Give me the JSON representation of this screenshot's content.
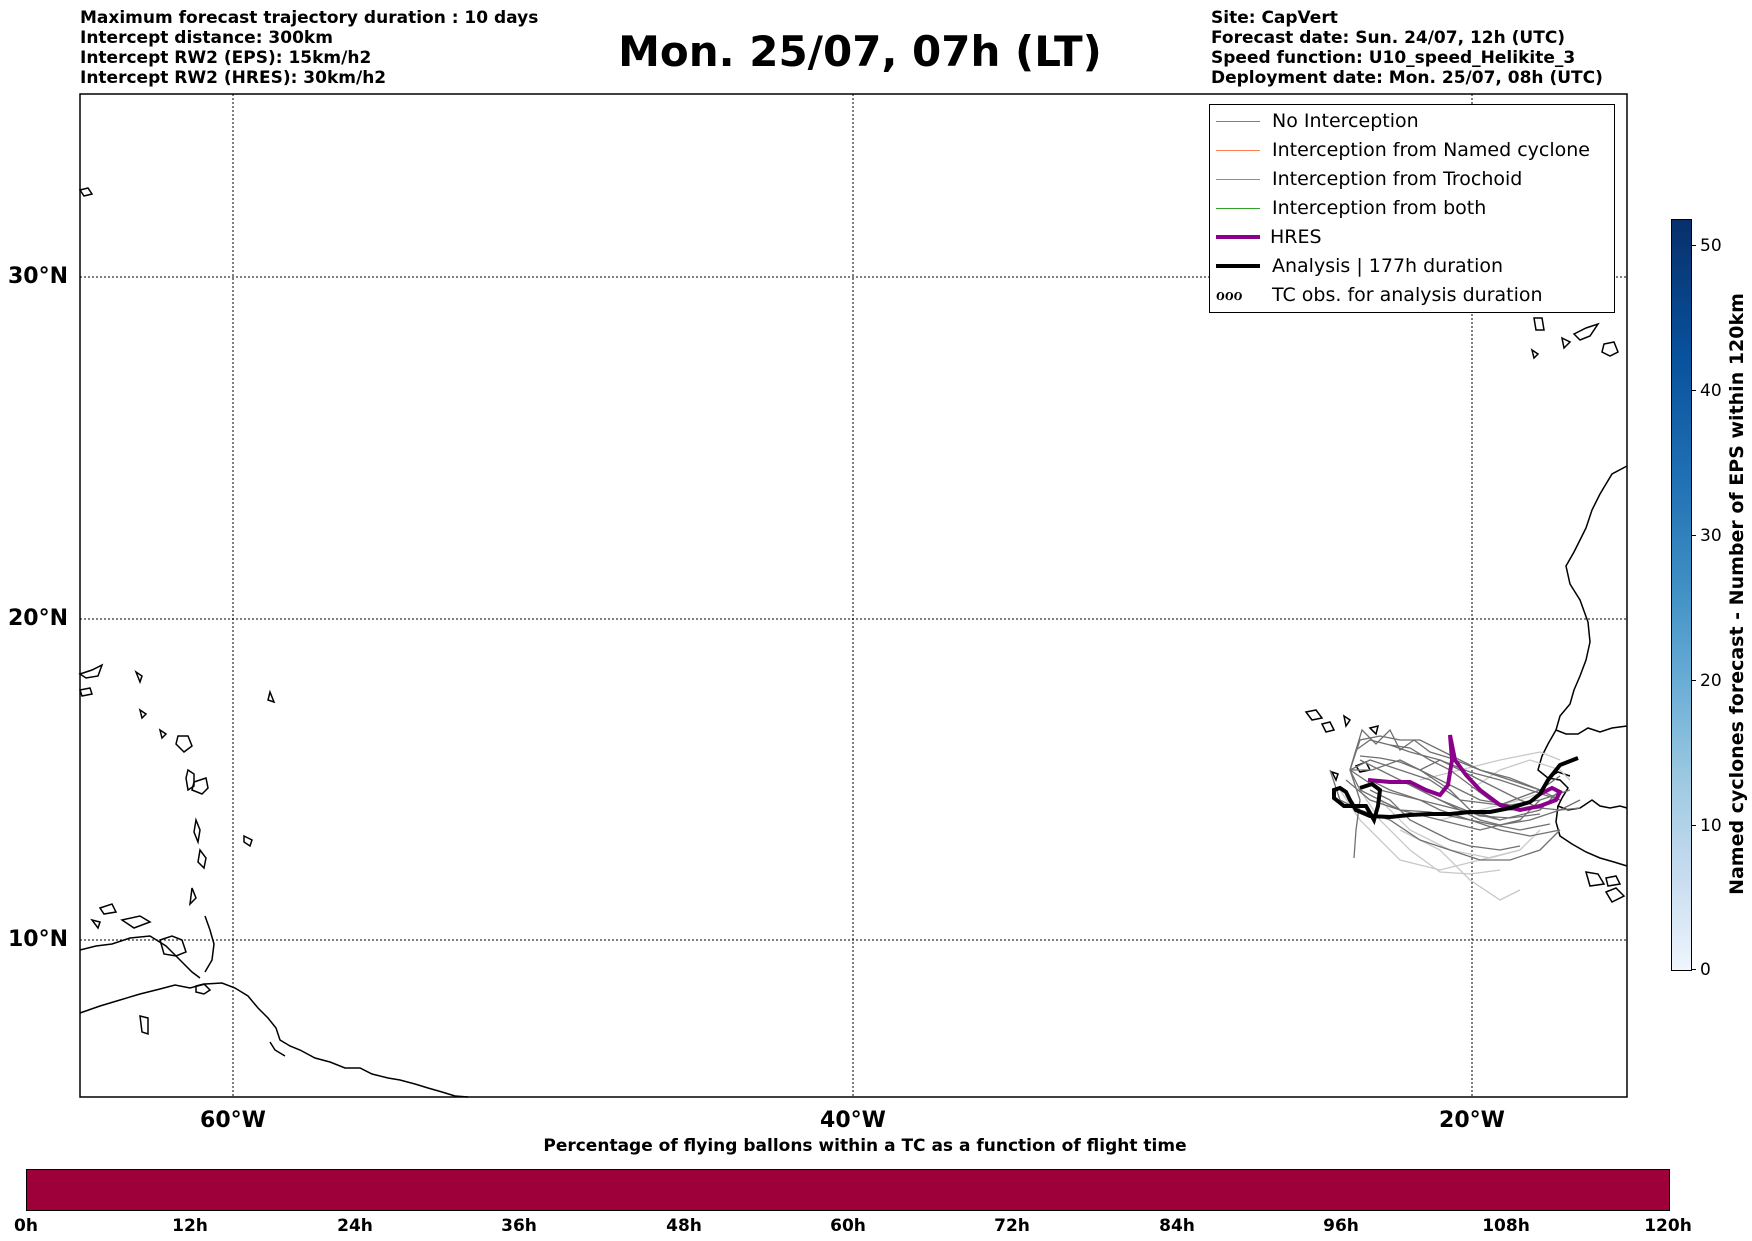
{
  "header": {
    "info_left": [
      "Maximum forecast trajectory duration : 10 days",
      "Intercept distance: 300km",
      "Intercept RW2 (EPS):  15km/h2",
      "Intercept RW2 (HRES): 30km/h2"
    ],
    "title": "Mon. 25/07, 07h (LT)",
    "info_right": [
      "Site: CapVert",
      "Forecast date: Sun. 24/07, 12h (UTC)",
      "Speed function: U10_speed_Helikite_3",
      "Deployment date: Mon. 25/07, 08h (UTC)"
    ]
  },
  "map": {
    "lat_labels": [
      "30°N",
      "20°N",
      "10°N"
    ],
    "lon_labels": [
      "60°W",
      "40°W",
      "20°W"
    ],
    "extent": {
      "lon": [
        -65,
        -15
      ],
      "lat": [
        5.5,
        35
      ]
    },
    "colors": {
      "no_interception": "#808080",
      "named_cyclone": "#ff7f50",
      "trochoid": "#999933",
      "both": "#33a02c",
      "hres": "#8b008b",
      "analysis": "#000000"
    }
  },
  "legend": {
    "items": [
      {
        "label": "No Interception",
        "style": "no_interception"
      },
      {
        "label": "Interception from Named cyclone",
        "style": "named_cyclone"
      },
      {
        "label": "Interception from Trochoid",
        "style": "trochoid"
      },
      {
        "label": "Interception from both",
        "style": "both"
      },
      {
        "label": "HRES",
        "style": "hres"
      },
      {
        "label": "Analysis | 177h duration",
        "style": "analysis"
      },
      {
        "label": "TC obs. for analysis duration",
        "style": "tc_symbols"
      }
    ],
    "tc_symbol": "ℴℴℴ"
  },
  "colorbar_vertical": {
    "label": "Named cyclones forecast - Number of EPS within 120km",
    "ticks": [
      "50",
      "40",
      "30",
      "20",
      "10",
      "0"
    ],
    "range": [
      0,
      52
    ]
  },
  "colorbar_horizontal": {
    "title": "Percentage of flying ballons within a TC as a function of flight time",
    "ticks": [
      "0h",
      "12h",
      "24h",
      "36h",
      "48h",
      "60h",
      "72h",
      "84h",
      "96h",
      "108h",
      "120h"
    ],
    "color": "#9e003a"
  }
}
